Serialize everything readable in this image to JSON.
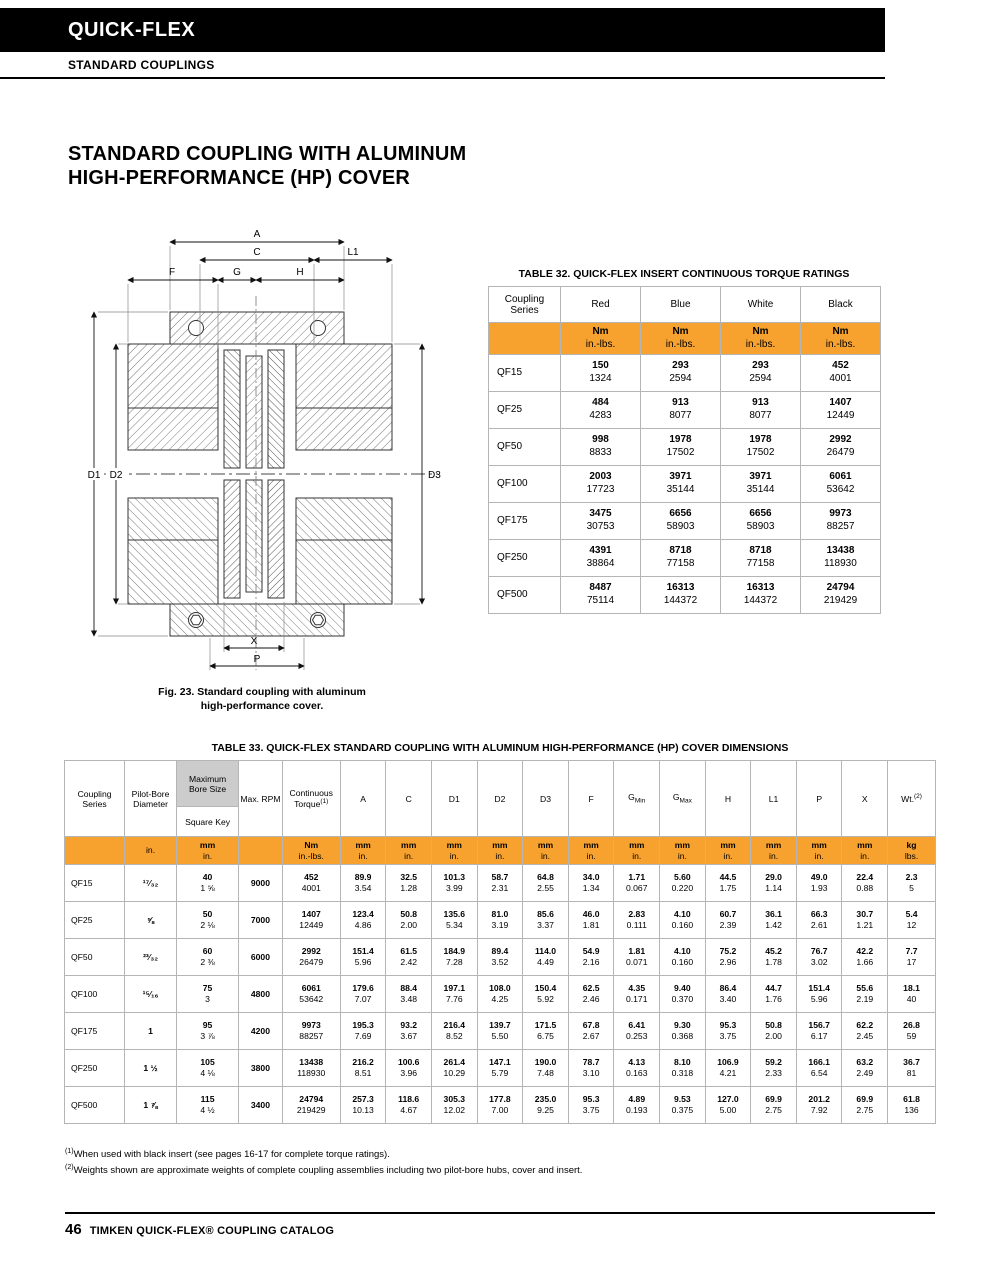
{
  "page": {
    "brand": "QUICK-FLEX",
    "section": "STANDARD COUPLINGS",
    "title_line1": "STANDARD COUPLING WITH ALUMINUM",
    "title_line2": "HIGH-PERFORMANCE (HP) COVER",
    "footnote1_sup": "(1)",
    "footnote1": "When used with black insert (see pages 16-17 for complete torque ratings).",
    "footnote2_sup": "(2)",
    "footnote2": "Weights shown are approximate weights of complete coupling assemblies including two pilot-bore hubs, cover and insert.",
    "page_number": "46",
    "footer_text": "TIMKEN QUICK-FLEX® COUPLING CATALOG",
    "accent_color": "#F7A22E",
    "header_gray": "#cccccc"
  },
  "figure": {
    "caption_line1": "Fig. 23. Standard coupling with aluminum",
    "caption_line2": "high-performance cover.",
    "labels": {
      "a": "A",
      "c": "C",
      "l1": "L1",
      "f": "F",
      "g": "G",
      "h": "H",
      "d1": "D1",
      "d2": "D2",
      "d3": "D3",
      "x": "X",
      "p": "P"
    }
  },
  "table32": {
    "title": "TABLE 32. QUICK-FLEX INSERT CONTINUOUS TORQUE RATINGS",
    "col_series": "Coupling Series",
    "col_colors": [
      "Red",
      "Blue",
      "White",
      "Black"
    ],
    "unit_top": "Nm",
    "unit_bottom": "in.-lbs.",
    "rows": [
      {
        "series": "QF15",
        "values": [
          [
            "150",
            "1324"
          ],
          [
            "293",
            "2594"
          ],
          [
            "293",
            "2594"
          ],
          [
            "452",
            "4001"
          ]
        ]
      },
      {
        "series": "QF25",
        "values": [
          [
            "484",
            "4283"
          ],
          [
            "913",
            "8077"
          ],
          [
            "913",
            "8077"
          ],
          [
            "1407",
            "12449"
          ]
        ]
      },
      {
        "series": "QF50",
        "values": [
          [
            "998",
            "8833"
          ],
          [
            "1978",
            "17502"
          ],
          [
            "1978",
            "17502"
          ],
          [
            "2992",
            "26479"
          ]
        ]
      },
      {
        "series": "QF100",
        "values": [
          [
            "2003",
            "17723"
          ],
          [
            "3971",
            "35144"
          ],
          [
            "3971",
            "35144"
          ],
          [
            "6061",
            "53642"
          ]
        ]
      },
      {
        "series": "QF175",
        "values": [
          [
            "3475",
            "30753"
          ],
          [
            "6656",
            "58903"
          ],
          [
            "6656",
            "58903"
          ],
          [
            "9973",
            "88257"
          ]
        ]
      },
      {
        "series": "QF250",
        "values": [
          [
            "4391",
            "38864"
          ],
          [
            "8718",
            "77158"
          ],
          [
            "8718",
            "77158"
          ],
          [
            "13438",
            "118930"
          ]
        ]
      },
      {
        "series": "QF500",
        "values": [
          [
            "8487",
            "75114"
          ],
          [
            "16313",
            "144372"
          ],
          [
            "16313",
            "144372"
          ],
          [
            "24794",
            "219429"
          ]
        ]
      }
    ]
  },
  "table33": {
    "title": "TABLE 33. QUICK-FLEX STANDARD COUPLING WITH ALUMINUM HIGH-PERFORMANCE (HP) COVER DIMENSIONS",
    "h": {
      "series": "Coupling Series",
      "pilot": "Pilot-Bore Diameter",
      "bore": "Maximum Bore Size",
      "key": "Square Key",
      "rpm": "Max. RPM",
      "torque": "Continuous Torque",
      "torque_sup": "(1)",
      "a": "A",
      "c": "C",
      "d1": "D1",
      "d2": "D2",
      "d3": "D3",
      "f": "F",
      "g": "G",
      "gmin": "Min",
      "gmax": "Max",
      "hh": "H",
      "l1": "L1",
      "p": "P",
      "x": "X",
      "wt": "Wt.",
      "wt_sup": "(2)"
    },
    "units": {
      "in": "in.",
      "mm": "mm",
      "nm": "Nm",
      "inlbs": "in.-lbs.",
      "kg": "kg",
      "lbs": "lbs."
    },
    "rows": [
      {
        "series": "QF15",
        "pilot": "¹⁷⁄₃₂",
        "bore": [
          "40",
          "1 ⅝"
        ],
        "rpm": "9000",
        "torque": [
          "452",
          "4001"
        ],
        "dims": [
          [
            "89.9",
            "3.54"
          ],
          [
            "32.5",
            "1.28"
          ],
          [
            "101.3",
            "3.99"
          ],
          [
            "58.7",
            "2.31"
          ],
          [
            "64.8",
            "2.55"
          ],
          [
            "34.0",
            "1.34"
          ],
          [
            "1.71",
            "0.067"
          ],
          [
            "5.60",
            "0.220"
          ],
          [
            "44.5",
            "1.75"
          ],
          [
            "29.0",
            "1.14"
          ],
          [
            "49.0",
            "1.93"
          ],
          [
            "22.4",
            "0.88"
          ]
        ],
        "wt": [
          "2.3",
          "5"
        ]
      },
      {
        "series": "QF25",
        "pilot": "⅝",
        "bore": [
          "50",
          "2 ⅛"
        ],
        "rpm": "7000",
        "torque": [
          "1407",
          "12449"
        ],
        "dims": [
          [
            "123.4",
            "4.86"
          ],
          [
            "50.8",
            "2.00"
          ],
          [
            "135.6",
            "5.34"
          ],
          [
            "81.0",
            "3.19"
          ],
          [
            "85.6",
            "3.37"
          ],
          [
            "46.0",
            "1.81"
          ],
          [
            "2.83",
            "0.111"
          ],
          [
            "4.10",
            "0.160"
          ],
          [
            "60.7",
            "2.39"
          ],
          [
            "36.1",
            "1.42"
          ],
          [
            "66.3",
            "2.61"
          ],
          [
            "30.7",
            "1.21"
          ]
        ],
        "wt": [
          "5.4",
          "12"
        ]
      },
      {
        "series": "QF50",
        "pilot": "²³⁄₃₂",
        "bore": [
          "60",
          "2 ⅜"
        ],
        "rpm": "6000",
        "torque": [
          "2992",
          "26479"
        ],
        "dims": [
          [
            "151.4",
            "5.96"
          ],
          [
            "61.5",
            "2.42"
          ],
          [
            "184.9",
            "7.28"
          ],
          [
            "89.4",
            "3.52"
          ],
          [
            "114.0",
            "4.49"
          ],
          [
            "54.9",
            "2.16"
          ],
          [
            "1.81",
            "0.071"
          ],
          [
            "4.10",
            "0.160"
          ],
          [
            "75.2",
            "2.96"
          ],
          [
            "45.2",
            "1.78"
          ],
          [
            "76.7",
            "3.02"
          ],
          [
            "42.2",
            "1.66"
          ]
        ],
        "wt": [
          "7.7",
          "17"
        ]
      },
      {
        "series": "QF100",
        "pilot": "¹⁵⁄₁₆",
        "bore": [
          "75",
          "3"
        ],
        "rpm": "4800",
        "torque": [
          "6061",
          "53642"
        ],
        "dims": [
          [
            "179.6",
            "7.07"
          ],
          [
            "88.4",
            "3.48"
          ],
          [
            "197.1",
            "7.76"
          ],
          [
            "108.0",
            "4.25"
          ],
          [
            "150.4",
            "5.92"
          ],
          [
            "62.5",
            "2.46"
          ],
          [
            "4.35",
            "0.171"
          ],
          [
            "9.40",
            "0.370"
          ],
          [
            "86.4",
            "3.40"
          ],
          [
            "44.7",
            "1.76"
          ],
          [
            "151.4",
            "5.96"
          ],
          [
            "55.6",
            "2.19"
          ]
        ],
        "wt": [
          "18.1",
          "40"
        ]
      },
      {
        "series": "QF175",
        "pilot": "1",
        "bore": [
          "95",
          "3 ⅞"
        ],
        "rpm": "4200",
        "torque": [
          "9973",
          "88257"
        ],
        "dims": [
          [
            "195.3",
            "7.69"
          ],
          [
            "93.2",
            "3.67"
          ],
          [
            "216.4",
            "8.52"
          ],
          [
            "139.7",
            "5.50"
          ],
          [
            "171.5",
            "6.75"
          ],
          [
            "67.8",
            "2.67"
          ],
          [
            "6.41",
            "0.253"
          ],
          [
            "9.30",
            "0.368"
          ],
          [
            "95.3",
            "3.75"
          ],
          [
            "50.8",
            "2.00"
          ],
          [
            "156.7",
            "6.17"
          ],
          [
            "62.2",
            "2.45"
          ]
        ],
        "wt": [
          "26.8",
          "59"
        ]
      },
      {
        "series": "QF250",
        "pilot": "1 ½",
        "bore": [
          "105",
          "4 ⅛"
        ],
        "rpm": "3800",
        "torque": [
          "13438",
          "118930"
        ],
        "dims": [
          [
            "216.2",
            "8.51"
          ],
          [
            "100.6",
            "3.96"
          ],
          [
            "261.4",
            "10.29"
          ],
          [
            "147.1",
            "5.79"
          ],
          [
            "190.0",
            "7.48"
          ],
          [
            "78.7",
            "3.10"
          ],
          [
            "4.13",
            "0.163"
          ],
          [
            "8.10",
            "0.318"
          ],
          [
            "106.9",
            "4.21"
          ],
          [
            "59.2",
            "2.33"
          ],
          [
            "166.1",
            "6.54"
          ],
          [
            "63.2",
            "2.49"
          ]
        ],
        "wt": [
          "36.7",
          "81"
        ]
      },
      {
        "series": "QF500",
        "pilot": "1 ⅞",
        "bore": [
          "115",
          "4 ½"
        ],
        "rpm": "3400",
        "torque": [
          "24794",
          "219429"
        ],
        "dims": [
          [
            "257.3",
            "10.13"
          ],
          [
            "118.6",
            "4.67"
          ],
          [
            "305.3",
            "12.02"
          ],
          [
            "177.8",
            "7.00"
          ],
          [
            "235.0",
            "9.25"
          ],
          [
            "95.3",
            "3.75"
          ],
          [
            "4.89",
            "0.193"
          ],
          [
            "9.53",
            "0.375"
          ],
          [
            "127.0",
            "5.00"
          ],
          [
            "69.9",
            "2.75"
          ],
          [
            "201.2",
            "7.92"
          ],
          [
            "69.9",
            "2.75"
          ]
        ],
        "wt": [
          "61.8",
          "136"
        ]
      }
    ]
  }
}
